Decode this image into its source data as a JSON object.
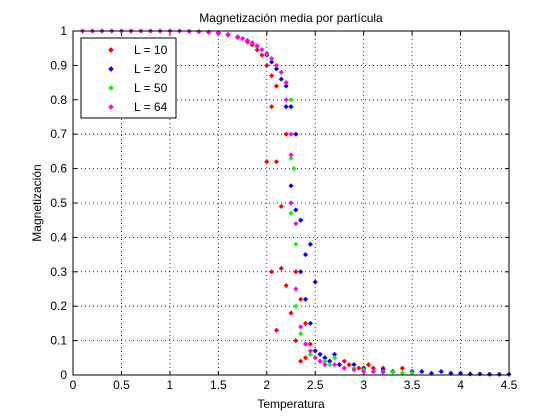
{
  "chart_data": {
    "type": "scatter",
    "title": "Magnetización media por partícula",
    "xlabel": "Temperatura",
    "ylabel": "Magnetización",
    "xlim": [
      0,
      4.5
    ],
    "ylim": [
      0,
      1
    ],
    "xticks": [
      0,
      0.5,
      1,
      1.5,
      2,
      2.5,
      3,
      3.5,
      4,
      4.5
    ],
    "xtick_labels": [
      "0",
      "0.5",
      "1",
      "1.5",
      "2",
      "2.5",
      "3",
      "3.5",
      "4",
      "4.5"
    ],
    "yticks": [
      0,
      0.1,
      0.2,
      0.3,
      0.4,
      0.5,
      0.6,
      0.7,
      0.8,
      0.9,
      1
    ],
    "ytick_labels": [
      "0",
      "0.1",
      "0.2",
      "0.3",
      "0.4",
      "0.5",
      "0.6",
      "0.7",
      "0.8",
      "0.9",
      "1"
    ],
    "grid": true,
    "legend_position": "top-left",
    "series": [
      {
        "name": "L = 10",
        "color": "#ff0000",
        "points": [
          [
            0.1,
            1
          ],
          [
            0.2,
            1
          ],
          [
            0.3,
            1
          ],
          [
            0.4,
            1
          ],
          [
            0.5,
            1
          ],
          [
            0.6,
            1
          ],
          [
            0.7,
            1
          ],
          [
            0.8,
            1
          ],
          [
            0.9,
            1
          ],
          [
            1.0,
            1
          ],
          [
            1.1,
            1
          ],
          [
            1.2,
            0.999
          ],
          [
            1.3,
            0.998
          ],
          [
            1.4,
            0.996
          ],
          [
            1.5,
            0.993
          ],
          [
            1.6,
            0.988
          ],
          [
            1.7,
            0.981
          ],
          [
            1.8,
            0.968
          ],
          [
            1.85,
            0.96
          ],
          [
            1.9,
            0.945
          ],
          [
            1.95,
            0.93
          ],
          [
            2.0,
            0.9
          ],
          [
            2.0,
            0.62
          ],
          [
            2.05,
            0.87
          ],
          [
            2.05,
            0.78
          ],
          [
            2.05,
            0.3
          ],
          [
            2.1,
            0.84
          ],
          [
            2.1,
            0.62
          ],
          [
            2.1,
            0.13
          ],
          [
            2.15,
            0.49
          ],
          [
            2.15,
            0.31
          ],
          [
            2.2,
            0.7
          ],
          [
            2.2,
            0.26
          ],
          [
            2.25,
            0.5
          ],
          [
            2.25,
            0.18
          ],
          [
            2.3,
            0.3
          ],
          [
            2.3,
            0.1
          ],
          [
            2.35,
            0.22
          ],
          [
            2.35,
            0.04
          ],
          [
            2.4,
            0.15
          ],
          [
            2.4,
            0.05
          ],
          [
            2.45,
            0.09
          ],
          [
            2.5,
            0.07
          ],
          [
            2.55,
            0.06
          ],
          [
            2.6,
            0.05
          ],
          [
            2.65,
            0.04
          ],
          [
            2.7,
            0.05
          ],
          [
            2.75,
            0.03
          ],
          [
            2.8,
            0.04
          ],
          [
            2.85,
            0.03
          ],
          [
            2.9,
            0.03
          ],
          [
            2.95,
            0.02
          ],
          [
            3.0,
            0.02
          ],
          [
            3.05,
            0.03
          ],
          [
            3.1,
            0.02
          ],
          [
            3.2,
            0.02
          ],
          [
            3.3,
            0.01
          ],
          [
            3.4,
            0.02
          ]
        ]
      },
      {
        "name": "L = 20",
        "color": "#0000ff",
        "points": [
          [
            0.1,
            1
          ],
          [
            0.2,
            1
          ],
          [
            0.3,
            1
          ],
          [
            0.4,
            1
          ],
          [
            0.5,
            1
          ],
          [
            0.6,
            1
          ],
          [
            0.7,
            1
          ],
          [
            0.8,
            1
          ],
          [
            0.9,
            1
          ],
          [
            1.0,
            1
          ],
          [
            1.1,
            1
          ],
          [
            1.2,
            0.999
          ],
          [
            1.3,
            0.998
          ],
          [
            1.4,
            0.997
          ],
          [
            1.5,
            0.994
          ],
          [
            1.6,
            0.99
          ],
          [
            1.7,
            0.983
          ],
          [
            1.8,
            0.972
          ],
          [
            1.9,
            0.955
          ],
          [
            2.0,
            0.93
          ],
          [
            2.05,
            0.91
          ],
          [
            2.1,
            0.89
          ],
          [
            2.15,
            0.86
          ],
          [
            2.2,
            0.84
          ],
          [
            2.2,
            0.78
          ],
          [
            2.25,
            0.78
          ],
          [
            2.25,
            0.55
          ],
          [
            2.3,
            0.7
          ],
          [
            2.3,
            0.48
          ],
          [
            2.35,
            0.45
          ],
          [
            2.35,
            0.3
          ],
          [
            2.4,
            0.35
          ],
          [
            2.4,
            0.22
          ],
          [
            2.45,
            0.38
          ],
          [
            2.45,
            0.15
          ],
          [
            2.5,
            0.27
          ],
          [
            2.5,
            0.07
          ],
          [
            2.55,
            0.06
          ],
          [
            2.6,
            0.05
          ],
          [
            2.65,
            0.04
          ],
          [
            2.7,
            0.06
          ],
          [
            2.75,
            0.03
          ],
          [
            2.8,
            0.02
          ],
          [
            2.9,
            0.03
          ],
          [
            3.0,
            0.02
          ],
          [
            3.1,
            0.01
          ],
          [
            3.2,
            0.015
          ],
          [
            3.3,
            0.01
          ],
          [
            3.5,
            0.01
          ],
          [
            3.6,
            0.01
          ],
          [
            3.7,
            0.005
          ],
          [
            3.8,
            0.01
          ],
          [
            3.9,
            0.005
          ],
          [
            4.0,
            0.005
          ],
          [
            4.1,
            0.003
          ],
          [
            4.2,
            0.003
          ],
          [
            4.3,
            0.002
          ],
          [
            4.4,
            0.002
          ],
          [
            4.5,
            0.002
          ]
        ]
      },
      {
        "name": "L = 50",
        "color": "#00ff00",
        "points": [
          [
            0.1,
            1
          ],
          [
            0.2,
            1
          ],
          [
            0.3,
            1
          ],
          [
            0.4,
            1
          ],
          [
            0.5,
            1
          ],
          [
            0.6,
            1
          ],
          [
            0.7,
            1
          ],
          [
            0.8,
            1
          ],
          [
            0.9,
            1
          ],
          [
            1.0,
            1
          ],
          [
            1.1,
            1
          ],
          [
            1.2,
            0.999
          ],
          [
            1.3,
            0.998
          ],
          [
            1.4,
            0.997
          ],
          [
            1.5,
            0.995
          ],
          [
            1.6,
            0.99
          ],
          [
            1.7,
            0.983
          ],
          [
            1.8,
            0.973
          ],
          [
            1.9,
            0.956
          ],
          [
            2.0,
            0.933
          ],
          [
            2.1,
            0.9
          ],
          [
            2.15,
            0.88
          ],
          [
            2.2,
            0.85
          ],
          [
            2.25,
            0.8
          ],
          [
            2.25,
            0.63
          ],
          [
            2.25,
            0.47
          ],
          [
            2.28,
            0.6
          ],
          [
            2.3,
            0.38
          ],
          [
            2.3,
            0.2
          ],
          [
            2.35,
            0.12
          ],
          [
            2.4,
            0.09
          ],
          [
            2.45,
            0.06
          ],
          [
            2.5,
            0.05
          ],
          [
            2.55,
            0.04
          ],
          [
            2.6,
            0.04
          ],
          [
            2.65,
            0.03
          ],
          [
            2.7,
            0.05
          ],
          [
            2.8,
            0.02
          ],
          [
            2.9,
            0.02
          ],
          [
            3.0,
            0.015
          ],
          [
            3.1,
            0.01
          ],
          [
            3.2,
            0.01
          ],
          [
            3.3,
            0.008
          ],
          [
            3.4,
            0.006
          ],
          [
            3.5,
            0.006
          ]
        ]
      },
      {
        "name": "L = 64",
        "color": "#ff00ff",
        "points": [
          [
            0.1,
            1
          ],
          [
            0.2,
            1
          ],
          [
            0.3,
            1
          ],
          [
            0.4,
            1
          ],
          [
            0.5,
            1
          ],
          [
            0.6,
            1
          ],
          [
            0.7,
            1
          ],
          [
            0.8,
            1
          ],
          [
            0.9,
            1
          ],
          [
            1.0,
            1
          ],
          [
            1.1,
            1
          ],
          [
            1.2,
            0.999
          ],
          [
            1.3,
            0.998
          ],
          [
            1.4,
            0.997
          ],
          [
            1.5,
            0.995
          ],
          [
            1.6,
            0.99
          ],
          [
            1.7,
            0.983
          ],
          [
            1.75,
            0.978
          ],
          [
            1.8,
            0.972
          ],
          [
            1.85,
            0.966
          ],
          [
            1.9,
            0.957
          ],
          [
            1.95,
            0.946
          ],
          [
            2.0,
            0.935
          ],
          [
            2.05,
            0.92
          ],
          [
            2.1,
            0.9
          ],
          [
            2.15,
            0.88
          ],
          [
            2.2,
            0.85
          ],
          [
            2.2,
            0.8
          ],
          [
            2.25,
            0.7
          ],
          [
            2.25,
            0.64
          ],
          [
            2.25,
            0.5
          ],
          [
            2.3,
            0.44
          ],
          [
            2.3,
            0.25
          ],
          [
            2.35,
            0.14
          ],
          [
            2.4,
            0.09
          ],
          [
            2.45,
            0.07
          ],
          [
            2.5,
            0.05
          ],
          [
            2.55,
            0.04
          ],
          [
            2.6,
            0.03
          ],
          [
            2.7,
            0.03
          ],
          [
            2.8,
            0.02
          ],
          [
            2.9,
            0.015
          ],
          [
            3.0,
            0.01
          ],
          [
            3.1,
            0.01
          ],
          [
            3.2,
            0.008
          ]
        ]
      }
    ]
  }
}
